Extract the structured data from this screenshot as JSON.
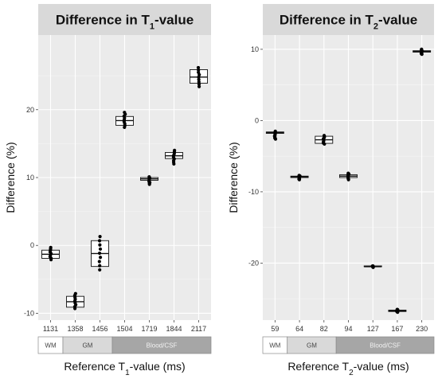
{
  "colors": {
    "panel_bg": "#ebebeb",
    "grid_major": "#ffffff",
    "grid_minor": "#f5f5f5",
    "strip_bg": "#d9d9d9",
    "points": "#000000",
    "box_fill": "#ffffff",
    "region_light": "#ffffff",
    "region_mid": "#d9d9d9",
    "region_dark": "#a6a6a6"
  },
  "chart_data": [
    {
      "type": "box",
      "title_main": "Difference in T",
      "title_sub": "1",
      "title_tail": "-value",
      "ylabel": "Difference (%)",
      "xlabel_main": "Reference T",
      "xlabel_sub": "1",
      "xlabel_tail": "-value (ms)",
      "categories": [
        "1131",
        "1358",
        "1456",
        "1504",
        "1719",
        "1844",
        "2117"
      ],
      "yticks": [
        -10,
        0,
        10,
        20
      ],
      "ylim": [
        -11,
        31
      ],
      "boxes": [
        {
          "min": -2.1,
          "q1": -1.9,
          "median": -1.3,
          "q3": -0.7,
          "max": -0.3
        },
        {
          "min": -9.3,
          "q1": -9.1,
          "median": -8.3,
          "q3": -7.5,
          "max": -7.1
        },
        {
          "min": -3.6,
          "q1": -3.1,
          "median": -1.2,
          "q3": 0.7,
          "max": 1.3
        },
        {
          "min": 17.4,
          "q1": 17.7,
          "median": 18.4,
          "q3": 19.0,
          "max": 19.6
        },
        {
          "min": 9.0,
          "q1": 9.6,
          "median": 9.8,
          "q3": 10.0,
          "max": 10.1
        },
        {
          "min": 12.0,
          "q1": 12.8,
          "median": 13.2,
          "q3": 13.7,
          "max": 14.0
        },
        {
          "min": 23.4,
          "q1": 23.9,
          "median": 24.8,
          "q3": 25.9,
          "max": 26.2
        }
      ],
      "regions": [
        {
          "label": "WM",
          "span": [
            0,
            1
          ]
        },
        {
          "label": "GM",
          "span": [
            1,
            3
          ]
        },
        {
          "label": "Blood/CSF",
          "span": [
            3,
            7
          ]
        }
      ]
    },
    {
      "type": "box",
      "title_main": "Difference in T",
      "title_sub": "2",
      "title_tail": "-value",
      "ylabel": "Difference (%)",
      "xlabel_main": "Reference T",
      "xlabel_sub": "2",
      "xlabel_tail": "-value (ms)",
      "categories": [
        "59",
        "64",
        "82",
        "94",
        "127",
        "167",
        "230"
      ],
      "yticks": [
        -20,
        -10,
        0,
        10
      ],
      "ylim": [
        -28,
        12
      ],
      "boxes": [
        {
          "min": -2.6,
          "q1": -1.8,
          "median": -1.7,
          "q3": -1.6,
          "max": -1.5
        },
        {
          "min": -8.3,
          "q1": -8.0,
          "median": -7.9,
          "q3": -7.8,
          "max": -7.7
        },
        {
          "min": -3.3,
          "q1": -3.2,
          "median": -2.7,
          "q3": -2.2,
          "max": -2.1
        },
        {
          "min": -8.3,
          "q1": -8.0,
          "median": -7.8,
          "q3": -7.6,
          "max": -7.4
        },
        {
          "min": -20.6,
          "q1": -20.5,
          "median": -20.5,
          "q3": -20.4,
          "max": -20.4
        },
        {
          "min": -26.9,
          "q1": -26.8,
          "median": -26.7,
          "q3": -26.6,
          "max": -26.5
        },
        {
          "min": 9.3,
          "q1": 9.6,
          "median": 9.7,
          "q3": 9.8,
          "max": 10.0
        }
      ],
      "regions": [
        {
          "label": "WM",
          "span": [
            0,
            1
          ]
        },
        {
          "label": "GM",
          "span": [
            1,
            3
          ]
        },
        {
          "label": "Blood/CSF",
          "span": [
            3,
            7
          ]
        }
      ]
    }
  ]
}
